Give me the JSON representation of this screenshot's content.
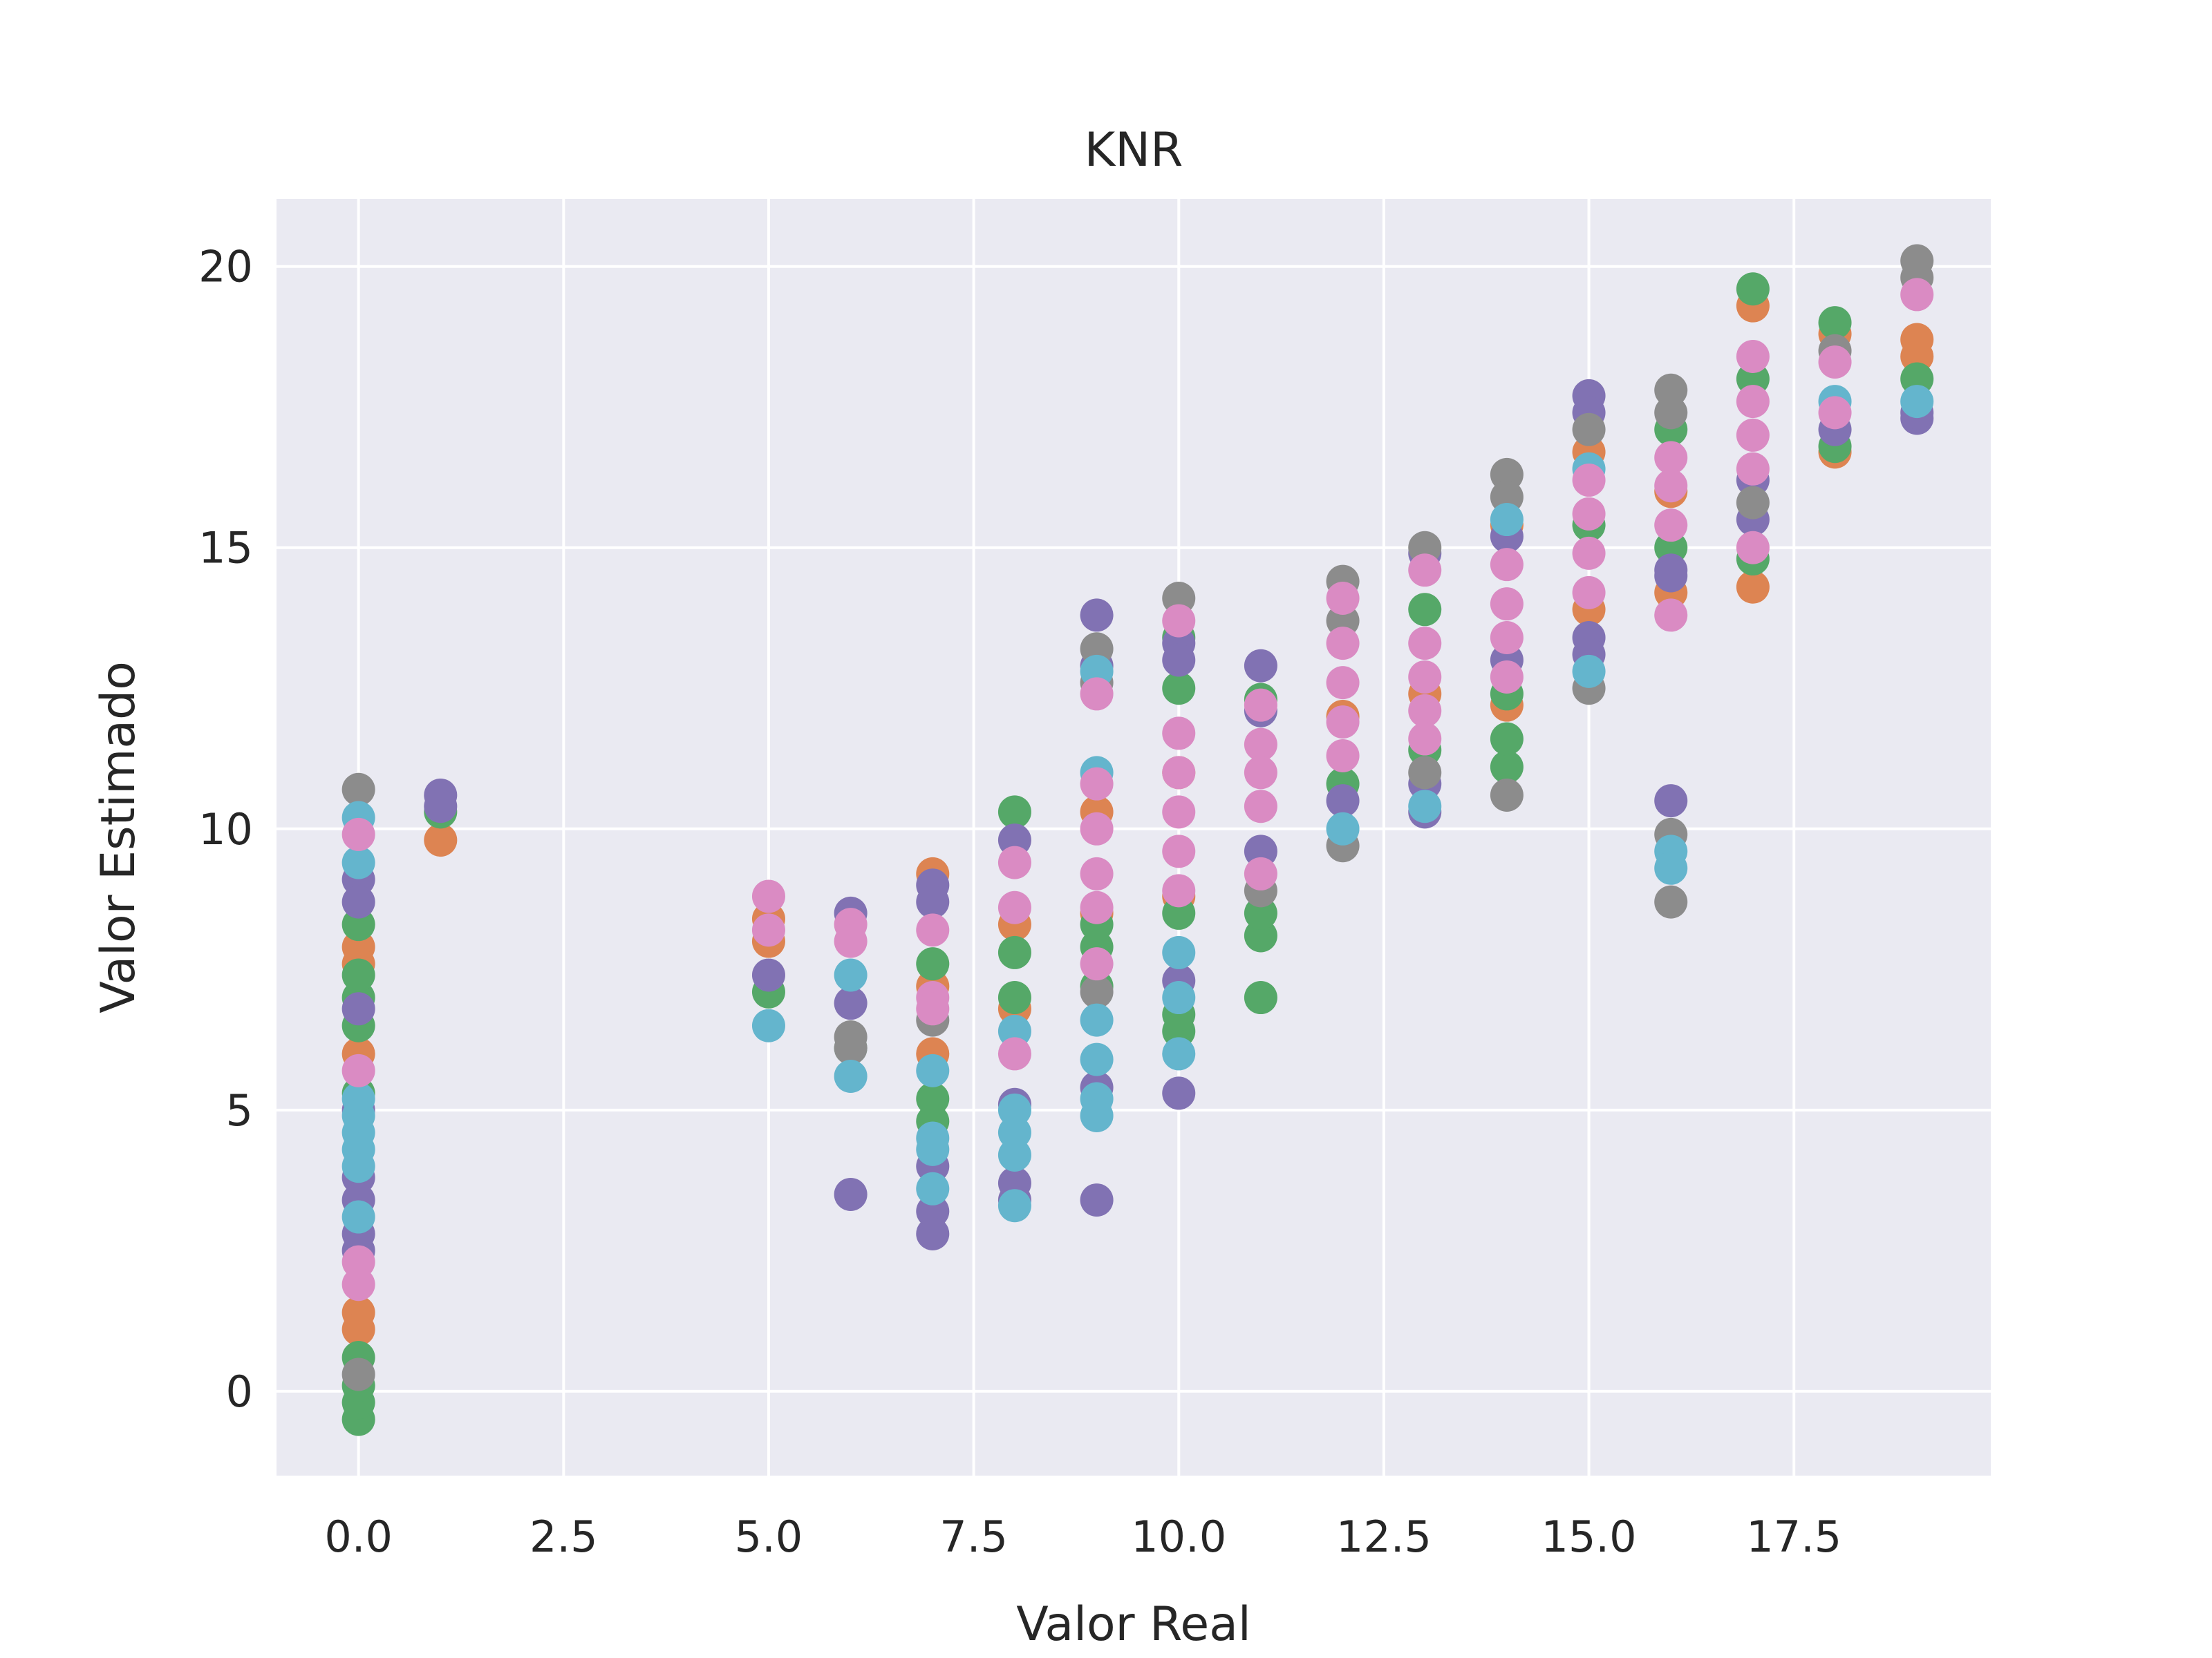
{
  "chart_data": {
    "type": "scatter",
    "title": "KNR",
    "xlabel": "Valor Real",
    "ylabel": "Valor Estimado",
    "xlim": [
      -1,
      19.9
    ],
    "ylim": [
      -1.5,
      21.2
    ],
    "xticks": [
      0.0,
      2.5,
      5.0,
      7.5,
      10.0,
      12.5,
      15.0,
      17.5
    ],
    "xtick_labels": [
      "0.0",
      "2.5",
      "5.0",
      "7.5",
      "10.0",
      "12.5",
      "15.0",
      "17.5"
    ],
    "yticks": [
      0,
      5,
      10,
      15,
      20
    ],
    "ytick_labels": [
      "0",
      "5",
      "10",
      "15",
      "20"
    ],
    "grid": true,
    "background": "#eaeaf2",
    "colors": [
      "#dd8452",
      "#55a868",
      "#8172b3",
      "#8c8c8c",
      "#64b5cd",
      "#da8bc3"
    ],
    "series": [
      {
        "color": "#dd8452",
        "points": [
          [
            0,
            7.9
          ],
          [
            0,
            7.6
          ],
          [
            0,
            6.0
          ],
          [
            0,
            1.4
          ],
          [
            0,
            1.1
          ],
          [
            1,
            9.8
          ],
          [
            5,
            8.4
          ],
          [
            5,
            8.0
          ],
          [
            7,
            9.2
          ],
          [
            7,
            7.2
          ],
          [
            7,
            6.0
          ],
          [
            8,
            8.3
          ],
          [
            8,
            6.8
          ],
          [
            9,
            10.3
          ],
          [
            9,
            8.5
          ],
          [
            10,
            11.0
          ],
          [
            10,
            8.8
          ],
          [
            12,
            12.0
          ],
          [
            13,
            12.4
          ],
          [
            14,
            12.2
          ],
          [
            14,
            15.4
          ],
          [
            15,
            16.7
          ],
          [
            15,
            13.9
          ],
          [
            16,
            14.2
          ],
          [
            16,
            16.0
          ],
          [
            17,
            19.3
          ],
          [
            17,
            14.3
          ],
          [
            18,
            16.7
          ],
          [
            18,
            18.8
          ],
          [
            19,
            18.7
          ],
          [
            19,
            18.4
          ]
        ]
      },
      {
        "color": "#55a868",
        "points": [
          [
            0,
            -0.5
          ],
          [
            0,
            -0.2
          ],
          [
            0,
            0.1
          ],
          [
            0,
            0.6
          ],
          [
            0,
            5.3
          ],
          [
            0,
            6.5
          ],
          [
            0,
            7.0
          ],
          [
            0,
            7.4
          ],
          [
            0,
            8.3
          ],
          [
            1,
            10.3
          ],
          [
            5,
            7.1
          ],
          [
            6,
            6.1
          ],
          [
            7,
            7.6
          ],
          [
            7,
            5.2
          ],
          [
            7,
            4.8
          ],
          [
            8,
            10.3
          ],
          [
            8,
            7.8
          ],
          [
            8,
            7.0
          ],
          [
            9,
            7.2
          ],
          [
            9,
            7.9
          ],
          [
            9,
            8.3
          ],
          [
            10,
            6.4
          ],
          [
            10,
            6.7
          ],
          [
            10,
            8.5
          ],
          [
            10,
            12.5
          ],
          [
            10,
            13.4
          ],
          [
            11,
            7.0
          ],
          [
            11,
            8.1
          ],
          [
            11,
            8.5
          ],
          [
            11,
            12.3
          ],
          [
            12,
            10.8
          ],
          [
            13,
            11.4
          ],
          [
            13,
            13.9
          ],
          [
            14,
            11.1
          ],
          [
            14,
            11.6
          ],
          [
            14,
            12.4
          ],
          [
            15,
            15.4
          ],
          [
            16,
            17.1
          ],
          [
            16,
            15.0
          ],
          [
            17,
            19.6
          ],
          [
            17,
            18.0
          ],
          [
            17,
            14.8
          ],
          [
            18,
            19.0
          ],
          [
            18,
            16.8
          ],
          [
            19,
            18.0
          ]
        ]
      },
      {
        "color": "#8172b3",
        "points": [
          [
            0,
            9.1
          ],
          [
            0,
            8.7
          ],
          [
            0,
            6.8
          ],
          [
            0,
            5.0
          ],
          [
            0,
            3.8
          ],
          [
            0,
            3.4
          ],
          [
            0,
            2.8
          ],
          [
            0,
            2.5
          ],
          [
            1,
            10.6
          ],
          [
            1,
            10.4
          ],
          [
            5,
            7.4
          ],
          [
            6,
            8.5
          ],
          [
            6,
            6.9
          ],
          [
            6,
            3.5
          ],
          [
            7,
            9.0
          ],
          [
            7,
            8.7
          ],
          [
            7,
            4.0
          ],
          [
            7,
            3.2
          ],
          [
            7,
            2.8
          ],
          [
            8,
            9.8
          ],
          [
            8,
            5.1
          ],
          [
            8,
            3.7
          ],
          [
            8,
            3.4
          ],
          [
            9,
            13.8
          ],
          [
            9,
            12.9
          ],
          [
            9,
            5.4
          ],
          [
            9,
            3.4
          ],
          [
            10,
            13.3
          ],
          [
            10,
            13.0
          ],
          [
            10,
            7.3
          ],
          [
            10,
            5.3
          ],
          [
            11,
            12.9
          ],
          [
            11,
            12.1
          ],
          [
            11,
            9.6
          ],
          [
            12,
            10.5
          ],
          [
            13,
            14.9
          ],
          [
            13,
            10.8
          ],
          [
            13,
            10.3
          ],
          [
            14,
            15.2
          ],
          [
            14,
            13.0
          ],
          [
            15,
            17.7
          ],
          [
            15,
            17.4
          ],
          [
            15,
            13.4
          ],
          [
            15,
            13.1
          ],
          [
            16,
            10.5
          ],
          [
            16,
            14.6
          ],
          [
            16,
            14.5
          ],
          [
            17,
            16.2
          ],
          [
            17,
            15.5
          ],
          [
            18,
            17.1
          ],
          [
            19,
            17.3
          ],
          [
            19,
            17.4
          ]
        ]
      },
      {
        "color": "#8c8c8c",
        "points": [
          [
            0,
            10.7
          ],
          [
            0,
            0.3
          ],
          [
            6,
            6.3
          ],
          [
            6,
            6.1
          ],
          [
            7,
            6.6
          ],
          [
            9,
            13.2
          ],
          [
            9,
            12.6
          ],
          [
            9,
            7.1
          ],
          [
            10,
            14.1
          ],
          [
            11,
            8.9
          ],
          [
            12,
            14.4
          ],
          [
            12,
            13.7
          ],
          [
            12,
            9.7
          ],
          [
            13,
            15.0
          ],
          [
            13,
            11.0
          ],
          [
            14,
            16.3
          ],
          [
            14,
            15.9
          ],
          [
            14,
            10.6
          ],
          [
            15,
            17.1
          ],
          [
            15,
            12.5
          ],
          [
            16,
            17.8
          ],
          [
            16,
            17.4
          ],
          [
            16,
            8.7
          ],
          [
            16,
            9.9
          ],
          [
            17,
            15.8
          ],
          [
            18,
            18.5
          ],
          [
            19,
            20.1
          ],
          [
            19,
            19.8
          ]
        ]
      },
      {
        "color": "#64b5cd",
        "points": [
          [
            0,
            10.2
          ],
          [
            0,
            9.4
          ],
          [
            0,
            5.2
          ],
          [
            0,
            4.9
          ],
          [
            0,
            4.6
          ],
          [
            0,
            4.3
          ],
          [
            0,
            4.0
          ],
          [
            0,
            3.1
          ],
          [
            5,
            6.5
          ],
          [
            6,
            7.4
          ],
          [
            6,
            5.6
          ],
          [
            7,
            5.7
          ],
          [
            7,
            4.5
          ],
          [
            7,
            4.3
          ],
          [
            7,
            3.6
          ],
          [
            8,
            6.4
          ],
          [
            8,
            5.0
          ],
          [
            8,
            4.6
          ],
          [
            8,
            4.2
          ],
          [
            8,
            3.3
          ],
          [
            9,
            12.8
          ],
          [
            9,
            6.6
          ],
          [
            9,
            5.9
          ],
          [
            9,
            5.2
          ],
          [
            9,
            4.9
          ],
          [
            9,
            11.0
          ],
          [
            10,
            6.0
          ],
          [
            10,
            7.0
          ],
          [
            10,
            7.8
          ],
          [
            12,
            10.0
          ],
          [
            13,
            10.4
          ],
          [
            14,
            15.5
          ],
          [
            15,
            16.4
          ],
          [
            15,
            12.8
          ],
          [
            16,
            9.6
          ],
          [
            16,
            9.3
          ],
          [
            18,
            17.6
          ],
          [
            19,
            17.6
          ]
        ]
      },
      {
        "color": "#da8bc3",
        "points": [
          [
            0,
            9.9
          ],
          [
            0,
            5.7
          ],
          [
            0,
            2.3
          ],
          [
            0,
            1.9
          ],
          [
            5,
            8.8
          ],
          [
            5,
            8.2
          ],
          [
            6,
            8.3
          ],
          [
            6,
            8.0
          ],
          [
            7,
            8.2
          ],
          [
            7,
            7.0
          ],
          [
            7,
            6.8
          ],
          [
            8,
            9.4
          ],
          [
            8,
            8.6
          ],
          [
            8,
            6.0
          ],
          [
            9,
            12.4
          ],
          [
            9,
            10.8
          ],
          [
            9,
            10.0
          ],
          [
            9,
            9.2
          ],
          [
            9,
            8.6
          ],
          [
            9,
            7.6
          ],
          [
            10,
            13.7
          ],
          [
            10,
            11.7
          ],
          [
            10,
            11.0
          ],
          [
            10,
            10.3
          ],
          [
            10,
            9.6
          ],
          [
            10,
            8.9
          ],
          [
            11,
            12.2
          ],
          [
            11,
            11.5
          ],
          [
            11,
            11.0
          ],
          [
            11,
            10.4
          ],
          [
            11,
            9.2
          ],
          [
            12,
            14.1
          ],
          [
            12,
            13.3
          ],
          [
            12,
            12.6
          ],
          [
            12,
            11.9
          ],
          [
            12,
            11.3
          ],
          [
            13,
            14.6
          ],
          [
            13,
            13.3
          ],
          [
            13,
            12.7
          ],
          [
            13,
            12.1
          ],
          [
            13,
            11.6
          ],
          [
            14,
            14.7
          ],
          [
            14,
            14.0
          ],
          [
            14,
            13.4
          ],
          [
            14,
            12.7
          ],
          [
            15,
            16.2
          ],
          [
            15,
            15.6
          ],
          [
            15,
            14.9
          ],
          [
            15,
            14.2
          ],
          [
            16,
            16.6
          ],
          [
            16,
            16.1
          ],
          [
            16,
            15.4
          ],
          [
            16,
            13.8
          ],
          [
            17,
            18.4
          ],
          [
            17,
            17.6
          ],
          [
            17,
            17.0
          ],
          [
            17,
            16.4
          ],
          [
            17,
            15.0
          ],
          [
            18,
            18.3
          ],
          [
            18,
            17.4
          ],
          [
            19,
            19.5
          ]
        ]
      }
    ]
  }
}
